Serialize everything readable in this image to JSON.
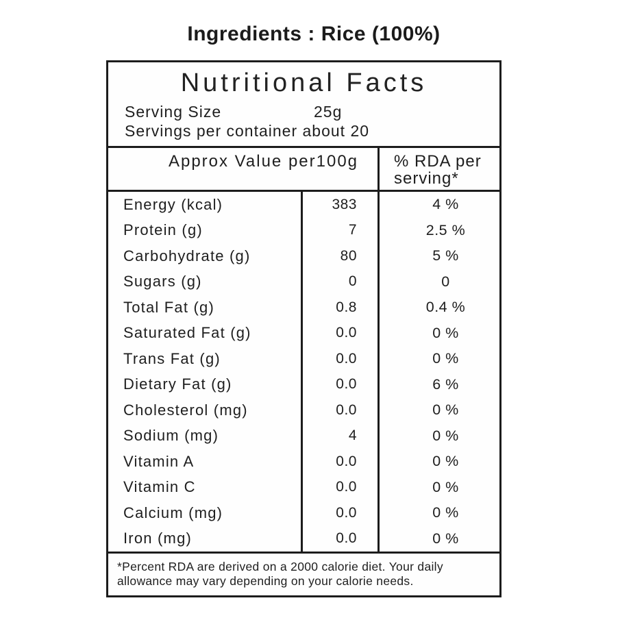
{
  "page": {
    "title": "Ingredients : Rice (100%)"
  },
  "label": {
    "title": "Nutritional Facts",
    "serving_size_label": "Serving Size",
    "serving_size_value": "25g",
    "servings_per_container": "Servings per container about 20",
    "header": {
      "approx_value": "Approx Value per100g",
      "rda": "% RDA per serving*"
    },
    "rows": [
      {
        "nutrient": "Energy (kcal)",
        "value": "383",
        "rda": "4 %"
      },
      {
        "nutrient": "Protein (g)",
        "value": "7",
        "rda": "2.5 %"
      },
      {
        "nutrient": "Carbohydrate (g)",
        "value": "80",
        "rda": "5 %"
      },
      {
        "nutrient": "Sugars (g)",
        "value": "0",
        "rda": "0"
      },
      {
        "nutrient": "Total Fat (g)",
        "value": "0.8",
        "rda": "0.4 %"
      },
      {
        "nutrient": "Saturated Fat (g)",
        "value": "0.0",
        "rda": "0 %"
      },
      {
        "nutrient": "Trans Fat (g)",
        "value": "0.0",
        "rda": "0 %"
      },
      {
        "nutrient": "Dietary Fat (g)",
        "value": "0.0",
        "rda": "6 %"
      },
      {
        "nutrient": "Cholesterol (mg)",
        "value": "0.0",
        "rda": "0 %"
      },
      {
        "nutrient": "Sodium (mg)",
        "value": "4",
        "rda": "0 %"
      },
      {
        "nutrient": "Vitamin A",
        "value": "0.0",
        "rda": "0 %"
      },
      {
        "nutrient": "Vitamin C",
        "value": "0.0",
        "rda": "0 %"
      },
      {
        "nutrient": "Calcium (mg)",
        "value": "0.0",
        "rda": "0 %"
      },
      {
        "nutrient": "Iron (mg)",
        "value": "0.0",
        "rda": "0 %"
      }
    ],
    "footnote": "*Percent RDA are derived on a 2000 calorie diet. Your daily allowance may vary depending on your calorie needs."
  },
  "colors": {
    "text": "#1e1e1e",
    "border": "#1c1c1c",
    "background": "#ffffff"
  }
}
